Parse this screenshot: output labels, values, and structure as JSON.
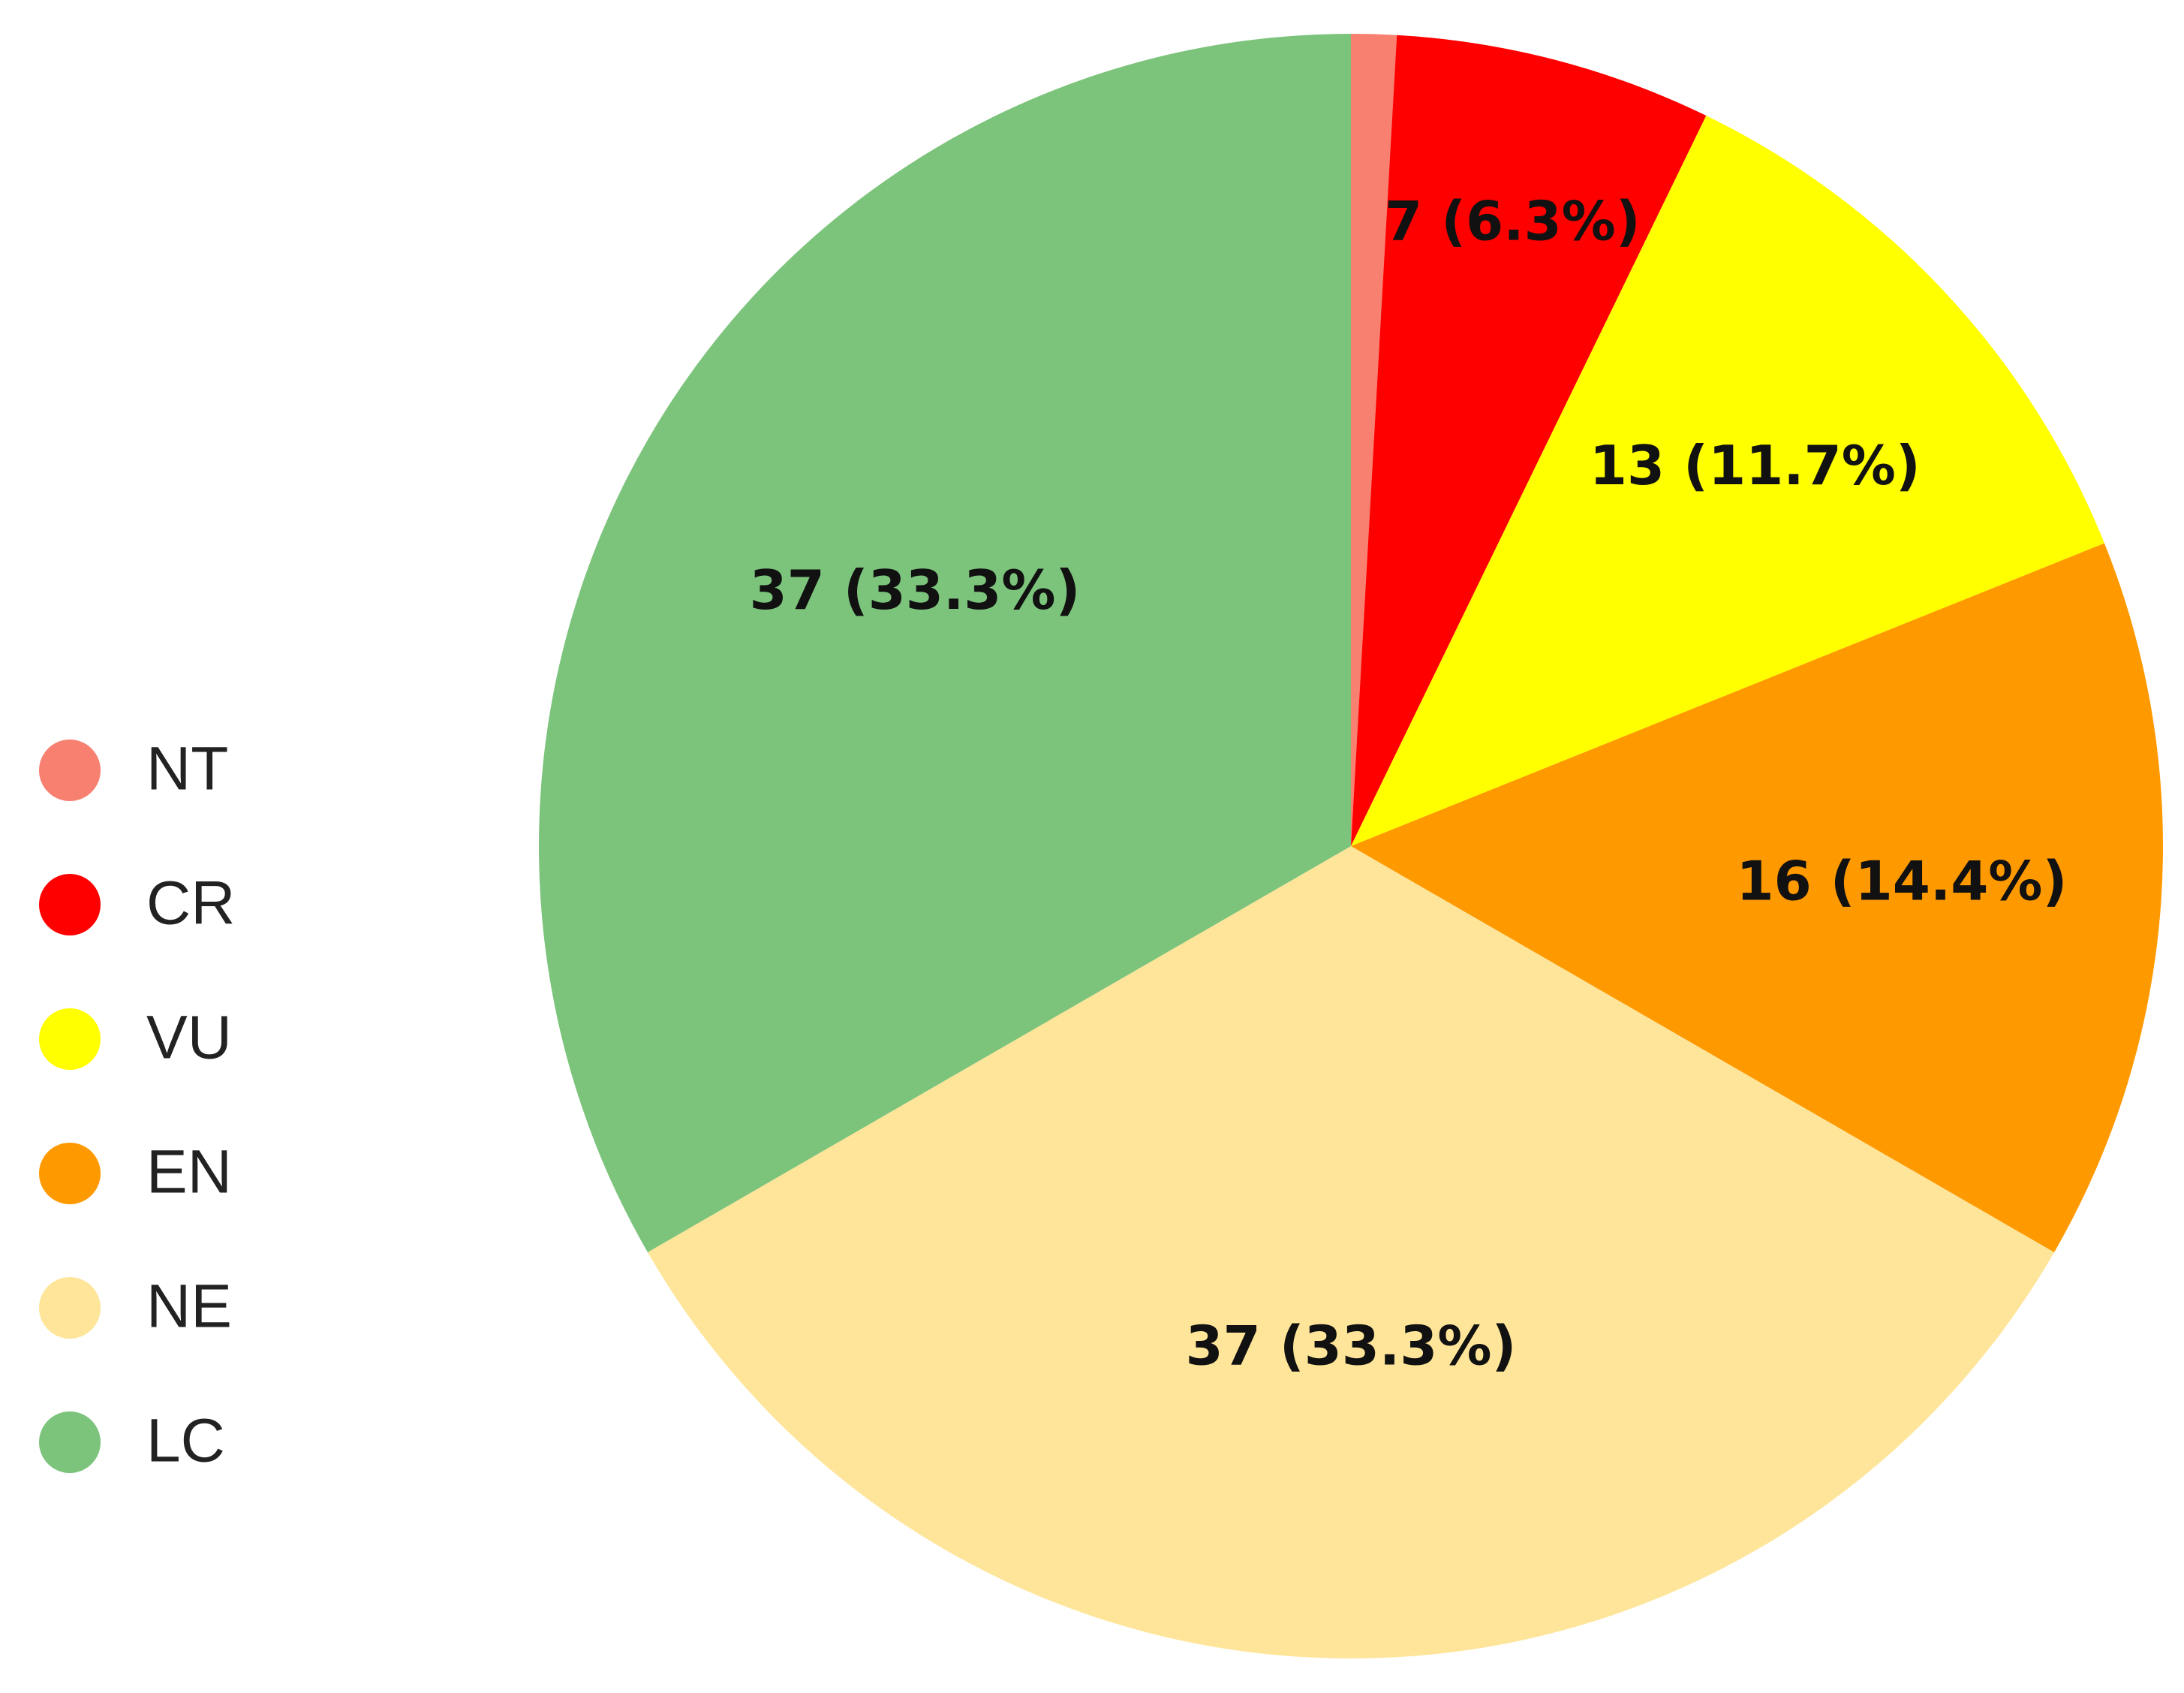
{
  "chart_data": {
    "type": "pie",
    "categories": [
      "NT",
      "CR",
      "VU",
      "EN",
      "NE",
      "LC"
    ],
    "values": [
      1,
      7,
      13,
      16,
      37,
      37
    ],
    "value_labels": [
      null,
      "7 (6.3%)",
      "13 (11.7%)",
      "16 (14.4%)",
      "37 (33.3%)",
      "37 (33.3%)"
    ],
    "colors": [
      "#f88070",
      "#ff0000",
      "#ffff00",
      "#ff9900",
      "#fee599",
      "#7cc47c"
    ],
    "legend": "left"
  }
}
